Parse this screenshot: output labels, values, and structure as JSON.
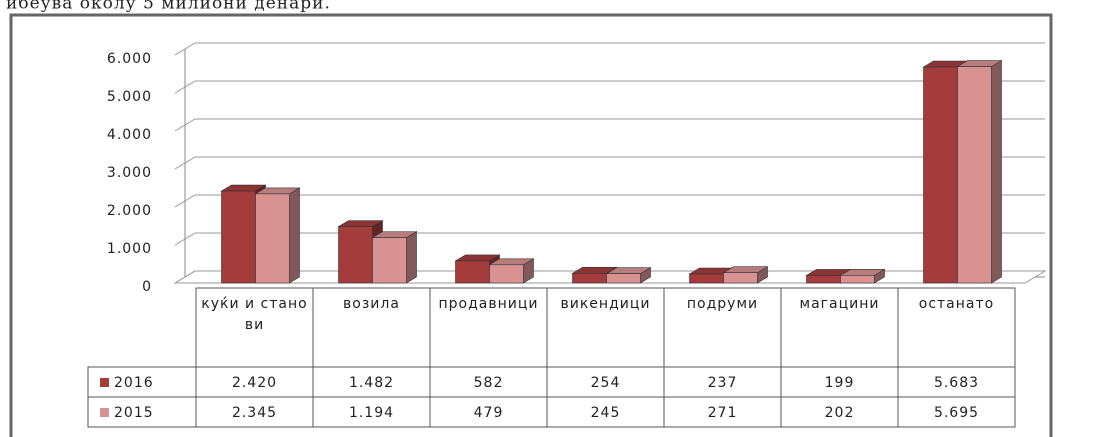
{
  "caption": "ибеува околу 5 милиони денари.",
  "chart_data": {
    "type": "bar",
    "categories": [
      "куќи и станови",
      "возила",
      "продавници",
      "викендици",
      "подруми",
      "магацини",
      "останато"
    ],
    "series": [
      {
        "name": "2016",
        "color": "#a53c3c",
        "values": [
          2420,
          1482,
          582,
          254,
          237,
          199,
          5683
        ],
        "value_labels": [
          "2.420",
          "1.482",
          "582",
          "254",
          "237",
          "199",
          "5.683"
        ]
      },
      {
        "name": "2015",
        "color": "#d99292",
        "values": [
          2345,
          1194,
          479,
          245,
          271,
          202,
          5695
        ],
        "value_labels": [
          "2.345",
          "1.194",
          "479",
          "245",
          "271",
          "202",
          "5.695"
        ]
      }
    ],
    "ylim": [
      0,
      6000
    ],
    "yticks": [
      0,
      {
        "value": 1000,
        "label": "1.000"
      },
      {
        "value": 2000,
        "label": "2.000"
      },
      {
        "value": 3000,
        "label": "3.000"
      },
      {
        "value": 4000,
        "label": "4.000"
      },
      {
        "value": 5000,
        "label": "5.000"
      },
      {
        "value": 6000,
        "label": "6.000"
      }
    ],
    "grid": true
  }
}
